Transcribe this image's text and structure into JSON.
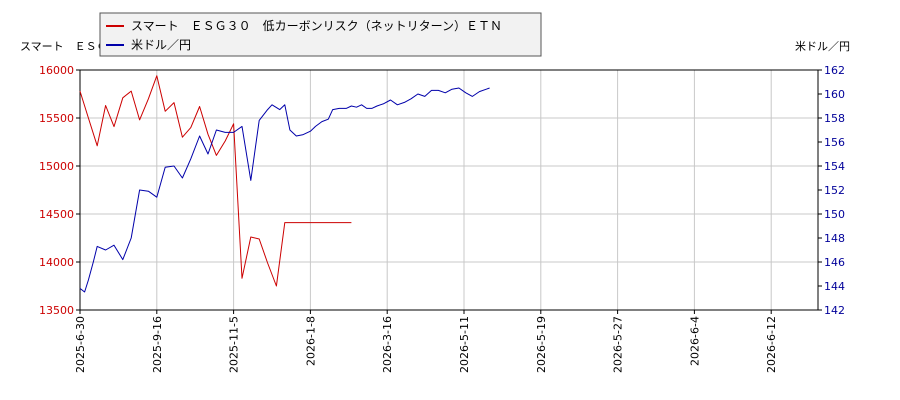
{
  "chart_data": {
    "type": "line",
    "left_axis_label": "スマート　ＥＳＧ",
    "right_axis_label": "米ドル／円",
    "x_tick_labels": [
      "2025-6-30",
      "2025-9-16",
      "2025-11-5",
      "2026-1-8",
      "2026-3-16",
      "2026-5-11",
      "2026-5-19",
      "2026-5-27",
      "2026-6-4",
      "2026-6-12"
    ],
    "y_left": {
      "min": 13500,
      "max": 16000,
      "ticks": [
        13500,
        14000,
        14500,
        15000,
        15500,
        16000
      ]
    },
    "y_right": {
      "min": 142,
      "max": 162,
      "ticks": [
        142,
        144,
        146,
        148,
        150,
        152,
        154,
        156,
        158,
        160,
        162
      ]
    },
    "grid": true,
    "legend_position": "top-left",
    "series": [
      {
        "name": "スマート　ＥＳＧ３０　低カーボンリスク（ネットリターン）ＥＴＮ",
        "axis": "left",
        "color": "#cc0000",
        "points": [
          [
            0,
            15780
          ],
          [
            0.33,
            15500
          ],
          [
            0.67,
            15210
          ],
          [
            1.0,
            15630
          ],
          [
            1.33,
            15410
          ],
          [
            1.67,
            15710
          ],
          [
            2.0,
            15780
          ],
          [
            2.33,
            15480
          ],
          [
            2.67,
            15700
          ],
          [
            3.0,
            15940
          ],
          [
            3.33,
            15570
          ],
          [
            3.67,
            15660
          ],
          [
            4.0,
            15300
          ],
          [
            4.33,
            15400
          ],
          [
            4.67,
            15620
          ],
          [
            5.0,
            15330
          ],
          [
            5.33,
            15110
          ],
          [
            5.67,
            15260
          ],
          [
            6.0,
            15440
          ],
          [
            6.33,
            13830
          ],
          [
            6.67,
            14260
          ],
          [
            7.0,
            14240
          ],
          [
            7.33,
            13990
          ],
          [
            7.67,
            13750
          ],
          [
            8.0,
            14410
          ],
          [
            10.6,
            14410
          ]
        ]
      },
      {
        "name": "米ドル／円",
        "axis": "right",
        "color": "#0000aa",
        "points": [
          [
            0,
            143.8
          ],
          [
            0.18,
            143.5
          ],
          [
            0.33,
            144.5
          ],
          [
            0.52,
            146.0
          ],
          [
            0.67,
            147.3
          ],
          [
            1.0,
            147.0
          ],
          [
            1.33,
            147.4
          ],
          [
            1.67,
            146.2
          ],
          [
            2.0,
            148.0
          ],
          [
            2.33,
            152.0
          ],
          [
            2.67,
            151.9
          ],
          [
            3.0,
            151.4
          ],
          [
            3.33,
            153.9
          ],
          [
            3.67,
            154.0
          ],
          [
            4.0,
            153.0
          ],
          [
            4.33,
            154.6
          ],
          [
            4.67,
            156.5
          ],
          [
            5.0,
            155.0
          ],
          [
            5.33,
            157.0
          ],
          [
            5.67,
            156.8
          ],
          [
            6.0,
            156.8
          ],
          [
            6.33,
            157.3
          ],
          [
            6.67,
            152.8
          ],
          [
            7.0,
            157.8
          ],
          [
            7.33,
            158.7
          ],
          [
            7.5,
            159.1
          ],
          [
            7.8,
            158.7
          ],
          [
            8.0,
            159.1
          ],
          [
            8.2,
            157.0
          ],
          [
            8.45,
            156.5
          ],
          [
            8.7,
            156.6
          ],
          [
            9.0,
            156.9
          ],
          [
            9.2,
            157.3
          ],
          [
            9.45,
            157.7
          ],
          [
            9.7,
            157.9
          ],
          [
            9.87,
            158.7
          ],
          [
            10.13,
            158.8
          ],
          [
            10.4,
            158.8
          ],
          [
            10.6,
            159.0
          ],
          [
            10.8,
            158.9
          ],
          [
            11.0,
            159.1
          ],
          [
            11.2,
            158.8
          ],
          [
            11.4,
            158.8
          ],
          [
            11.6,
            159.0
          ],
          [
            11.87,
            159.2
          ],
          [
            12.13,
            159.5
          ],
          [
            12.4,
            159.1
          ],
          [
            12.67,
            159.3
          ],
          [
            12.93,
            159.6
          ],
          [
            13.2,
            160.0
          ],
          [
            13.47,
            159.8
          ],
          [
            13.73,
            160.3
          ],
          [
            14.0,
            160.3
          ],
          [
            14.27,
            160.1
          ],
          [
            14.53,
            160.4
          ],
          [
            14.8,
            160.5
          ],
          [
            15.07,
            160.1
          ],
          [
            15.33,
            159.8
          ],
          [
            15.6,
            160.2
          ],
          [
            15.87,
            160.4
          ],
          [
            16.0,
            160.5
          ]
        ]
      }
    ]
  }
}
